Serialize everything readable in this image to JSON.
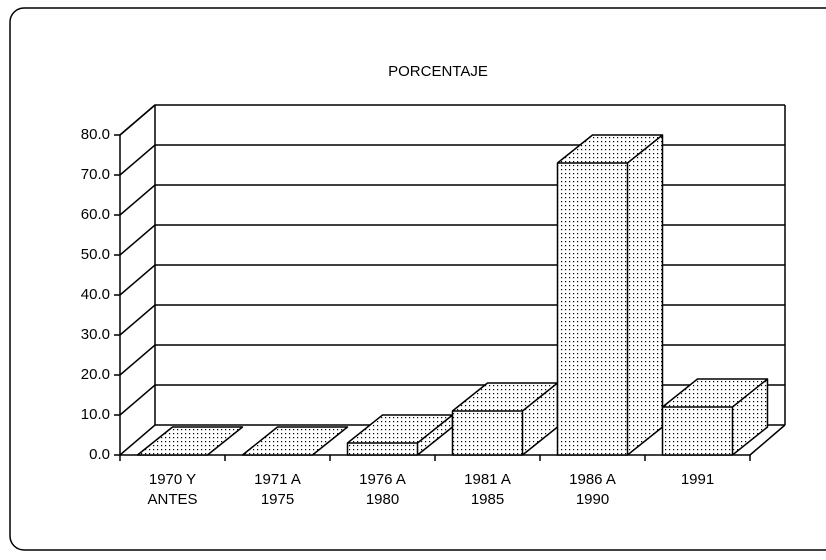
{
  "chart_data": {
    "type": "bar3d",
    "title": "PORCENTAJE",
    "categories": [
      [
        "1970 Y",
        "ANTES"
      ],
      [
        "1971 A",
        "1975"
      ],
      [
        "1976 A",
        "1980"
      ],
      [
        "1981 A",
        "1985"
      ],
      [
        "1986 A",
        "1990"
      ],
      [
        "1991"
      ]
    ],
    "values": [
      0,
      0,
      3,
      11,
      73,
      12
    ],
    "ylim": [
      0,
      80
    ],
    "yticks": [
      {
        "value": 0,
        "label": "0.0"
      },
      {
        "value": 10,
        "label": "10.0"
      },
      {
        "value": 20,
        "label": "20.0"
      },
      {
        "value": 30,
        "label": "30.0"
      },
      {
        "value": 40,
        "label": "40.0"
      },
      {
        "value": 50,
        "label": "50.0"
      },
      {
        "value": 60,
        "label": "60.0"
      },
      {
        "value": 70,
        "label": "70.0"
      },
      {
        "value": 80,
        "label": "80.0"
      }
    ],
    "grid": true
  }
}
